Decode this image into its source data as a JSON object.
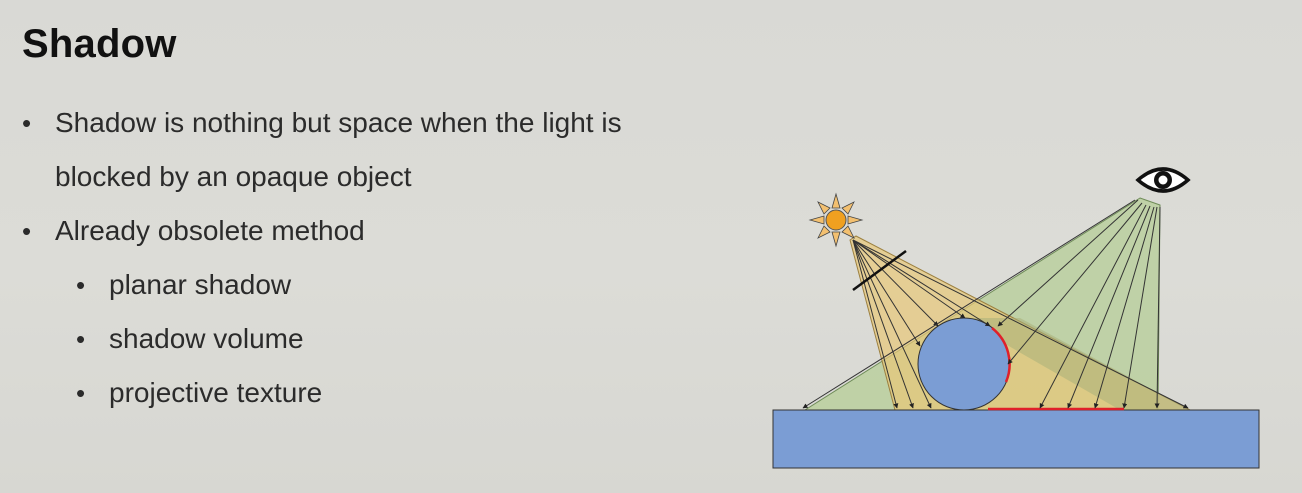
{
  "slide": {
    "title": "Shadow",
    "bullets": [
      {
        "text": "Shadow is nothing but space when the light is",
        "level": 1,
        "bullet": "•"
      },
      {
        "text": "blocked by an opaque object",
        "level": 1,
        "bullet": ""
      },
      {
        "text": "Already obsolete method",
        "level": 1,
        "bullet": "•"
      },
      {
        "text": "planar shadow",
        "level": 2,
        "bullet": "•"
      },
      {
        "text": "shadow volume",
        "level": 2,
        "bullet": "•"
      },
      {
        "text": "projective texture",
        "level": 2,
        "bullet": "•"
      }
    ]
  },
  "diagram": {
    "icons": [
      "sun-icon",
      "eye-icon"
    ],
    "colors": {
      "ground": "#7b9dd4",
      "sphere": "#7b9dd4",
      "light_rays": "#e8c878",
      "view_rays": "#b6cd97",
      "shadow_edge": "#e0202a",
      "sun": "#f0a020",
      "outline": "#333333"
    }
  }
}
